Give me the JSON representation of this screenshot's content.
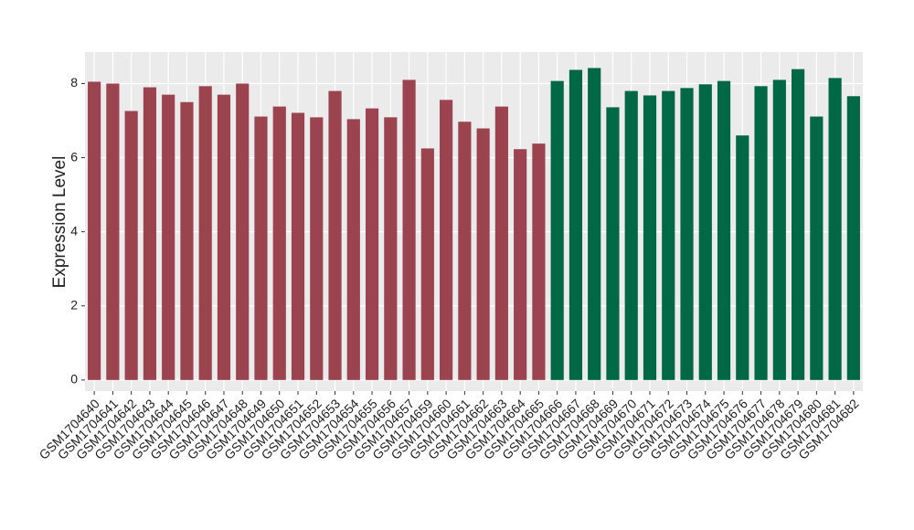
{
  "chart_data": {
    "type": "bar",
    "ylabel": "Expression Level",
    "categories": [
      "GSM1704640",
      "GSM1704641",
      "GSM1704642",
      "GSM1704643",
      "GSM1704644",
      "GSM1704645",
      "GSM1704646",
      "GSM1704647",
      "GSM1704648",
      "GSM1704649",
      "GSM1704650",
      "GSM1704651",
      "GSM1704652",
      "GSM1704653",
      "GSM1704654",
      "GSM1704655",
      "GSM1704656",
      "GSM1704657",
      "GSM1704659",
      "GSM1704660",
      "GSM1704661",
      "GSM1704662",
      "GSM1704663",
      "GSM1704664",
      "GSM1704665",
      "GSM1704666",
      "GSM1704667",
      "GSM1704668",
      "GSM1704669",
      "GSM1704670",
      "GSM1704671",
      "GSM1704672",
      "GSM1704673",
      "GSM1704674",
      "GSM1704675",
      "GSM1704676",
      "GSM1704677",
      "GSM1704678",
      "GSM1704679",
      "GSM1704680",
      "GSM1704681",
      "GSM1704682"
    ],
    "values": [
      8.05,
      8.0,
      7.26,
      7.9,
      7.7,
      7.5,
      7.93,
      7.7,
      8.0,
      7.11,
      7.38,
      7.21,
      7.09,
      7.8,
      7.04,
      7.33,
      7.09,
      8.1,
      6.25,
      7.56,
      6.97,
      6.79,
      7.38,
      6.23,
      6.38,
      8.07,
      8.37,
      8.42,
      7.36,
      7.8,
      7.68,
      7.8,
      7.88,
      7.98,
      8.07,
      6.6,
      7.93,
      8.1,
      8.39,
      7.11,
      8.15,
      7.66
    ],
    "colors": [
      "#9b4450",
      "#9b4450",
      "#9b4450",
      "#9b4450",
      "#9b4450",
      "#9b4450",
      "#9b4450",
      "#9b4450",
      "#9b4450",
      "#9b4450",
      "#9b4450",
      "#9b4450",
      "#9b4450",
      "#9b4450",
      "#9b4450",
      "#9b4450",
      "#9b4450",
      "#9b4450",
      "#9b4450",
      "#9b4450",
      "#9b4450",
      "#9b4450",
      "#9b4450",
      "#9b4450",
      "#9b4450",
      "#006845",
      "#006845",
      "#006845",
      "#006845",
      "#006845",
      "#006845",
      "#006845",
      "#006845",
      "#006845",
      "#006845",
      "#006845",
      "#006845",
      "#006845",
      "#006845",
      "#006845",
      "#006845",
      "#006845"
    ],
    "ylim": [
      -0.3,
      8.85
    ],
    "yticks": [
      0,
      2,
      4,
      6,
      8
    ],
    "grid": true
  }
}
